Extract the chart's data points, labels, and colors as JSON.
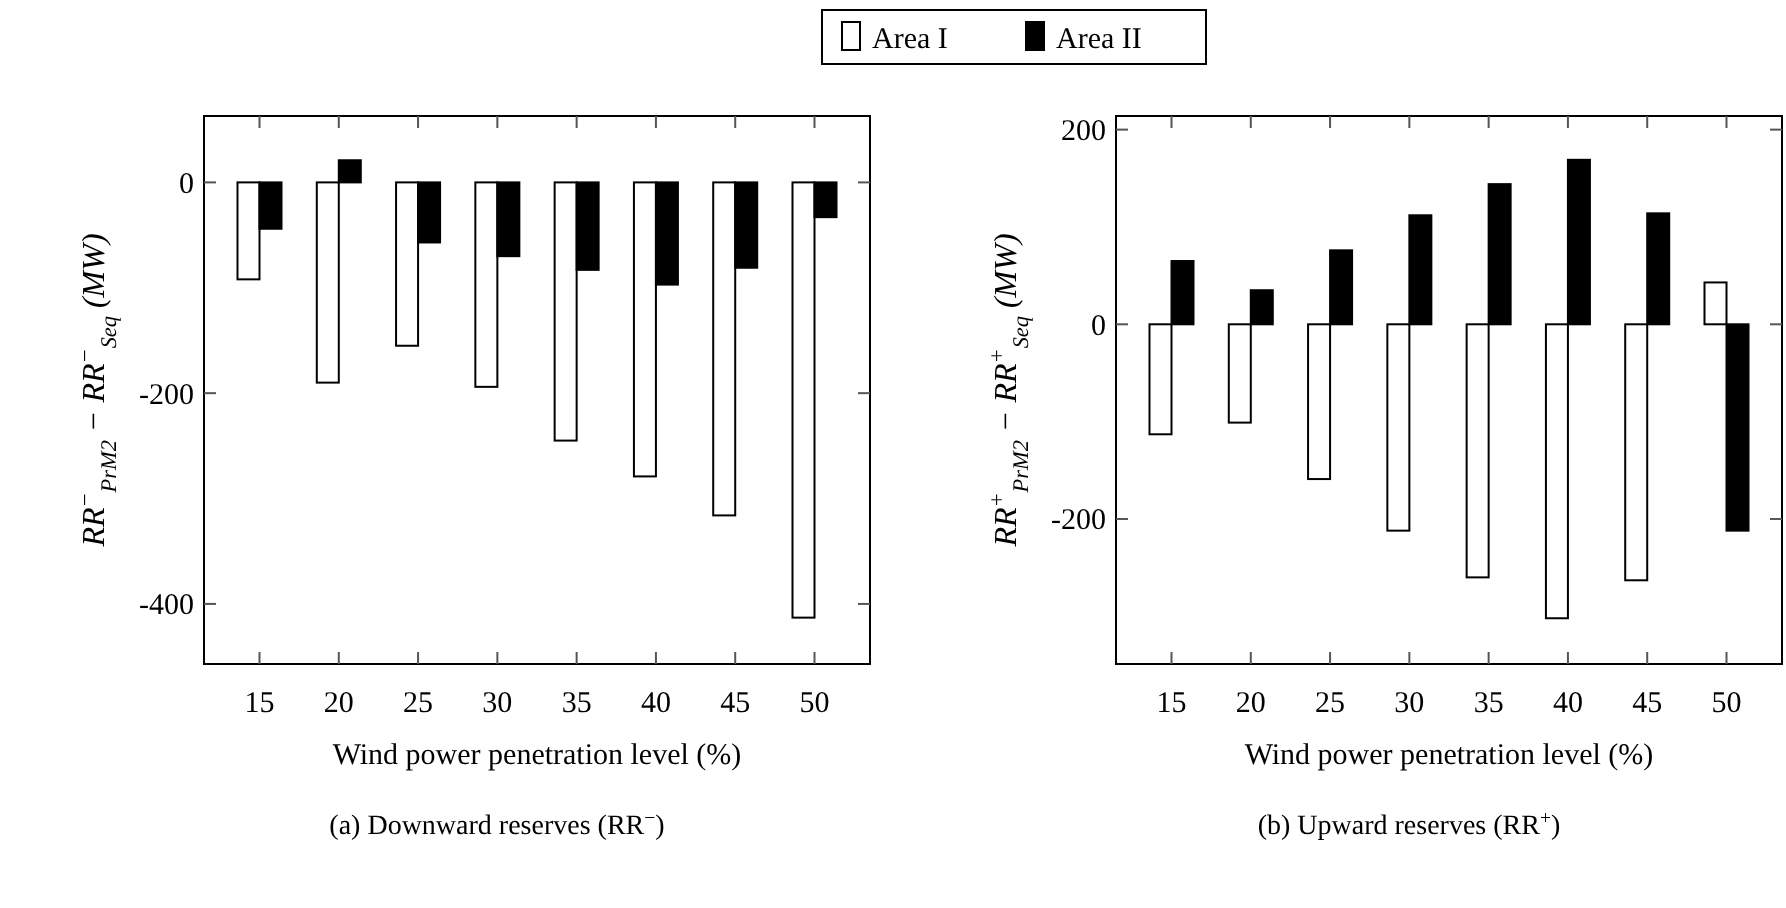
{
  "chart_data": [
    {
      "type": "bar",
      "xlabel": "Wind power penetration level (%)",
      "ylabel": "RR$^{−}$$_{PrM2}$ − RR$^{−}$$_{Seq}$ (MW)",
      "categories": [
        "15",
        "20",
        "25",
        "30",
        "35",
        "40",
        "45",
        "50"
      ],
      "series": [
        {
          "name": "Area I",
          "color": "#ffffff",
          "values": [
            -92,
            -190,
            -155,
            -194,
            -245,
            -279,
            -316,
            -413
          ]
        },
        {
          "name": "Area II",
          "color": "#000000",
          "values": [
            -44,
            21,
            -57,
            -70,
            -83,
            -97,
            -81,
            -33
          ]
        }
      ],
      "ylim": [
        -457,
        63
      ],
      "yticks": [
        -400,
        -200,
        0
      ],
      "legend": "top",
      "annotations": [
        "(a) Downward reserves (RR$^{−}$)"
      ]
    },
    {
      "type": "bar",
      "xlabel": "Wind power penetration level (%)",
      "ylabel": "RR$^{+}$$_{PrM2}$ − RR$^{+}$$_{Seq}$ (MW)",
      "categories": [
        "15",
        "20",
        "25",
        "30",
        "35",
        "40",
        "45",
        "50"
      ],
      "series": [
        {
          "color": "#ffffff",
          "values": [
            -113,
            -101,
            -159,
            -212,
            -260,
            -302,
            -263,
            43
          ]
        },
        {
          "color": "#000000",
          "values": [
            65,
            35,
            76,
            112,
            144,
            169,
            114,
            -212
          ]
        }
      ],
      "ylim": [
        -349,
        214
      ],
      "yticks": [
        -200,
        0,
        200
      ],
      "annotations": [
        "(b) Upward reserves (RR$^{+}$)"
      ]
    }
  ]
}
